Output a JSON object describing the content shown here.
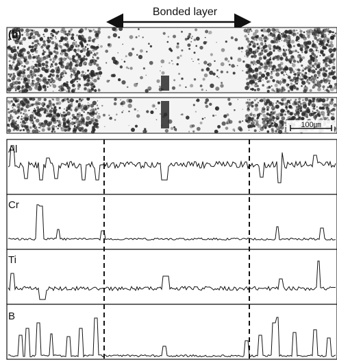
{
  "figure": {
    "panel_label": "(b)",
    "region_label": "Bonded layer",
    "scale_bar": {
      "label": "100㎛"
    },
    "profiles": [
      {
        "element": "Al"
      },
      {
        "element": "Cr"
      },
      {
        "element": "Ti"
      },
      {
        "element": "B"
      }
    ]
  },
  "colors": {
    "ink": "#111111",
    "background": "#ffffff",
    "micrograph_dark": "#2a2a2a"
  }
}
